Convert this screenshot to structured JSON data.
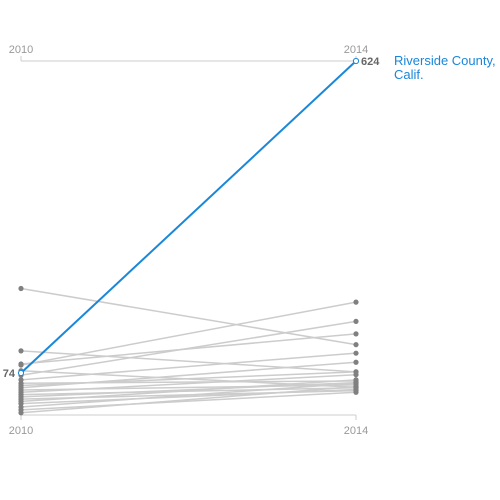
{
  "chart_data": {
    "type": "line",
    "x": [
      "2010",
      "2014"
    ],
    "colors": {
      "highlight": "#1a87d9",
      "background_line": "#cccccc",
      "point": "#808080",
      "axis": "#cccccc"
    },
    "highlight": {
      "name_lines": [
        "Riverside County,",
        "Calif."
      ],
      "start": 74,
      "end": 624,
      "start_label": "74",
      "end_label": "624"
    },
    "series": [
      {
        "values": [
          223,
          124
        ]
      },
      {
        "values": [
          113,
          76
        ]
      },
      {
        "values": [
          90,
          143
        ]
      },
      {
        "values": [
          88,
          199
        ]
      },
      {
        "values": [
          78,
          49
        ]
      },
      {
        "values": [
          70,
          165
        ]
      },
      {
        "values": [
          62,
          109
        ]
      },
      {
        "values": [
          56,
          60
        ]
      },
      {
        "values": [
          52,
          76
        ]
      },
      {
        "values": [
          48,
          93
        ]
      },
      {
        "values": [
          44,
          53
        ]
      },
      {
        "values": [
          40,
          71
        ]
      },
      {
        "values": [
          36,
          48
        ]
      },
      {
        "values": [
          32,
          57
        ]
      },
      {
        "values": [
          28,
          43
        ]
      },
      {
        "values": [
          24,
          62
        ]
      },
      {
        "values": [
          20,
          45
        ]
      },
      {
        "values": [
          14,
          56
        ]
      },
      {
        "values": [
          9,
          40
        ]
      },
      {
        "values": [
          4,
          50
        ]
      }
    ],
    "ylim": [
      0,
      624
    ]
  }
}
